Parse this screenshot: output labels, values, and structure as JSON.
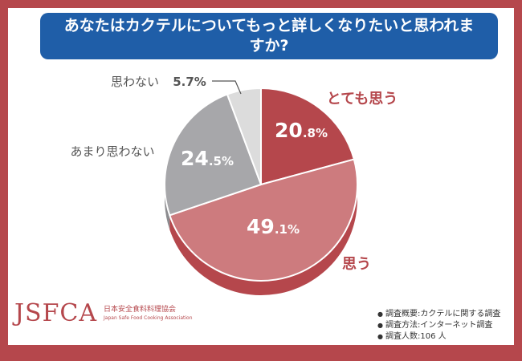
{
  "title": "あなたはカクテルについてもっと詳しくなりたいと思われますか?",
  "chart_data": {
    "type": "pie",
    "slices": [
      {
        "label": "とても思う",
        "value": 20.8,
        "value_main": "20",
        "value_dec": ".8%"
      },
      {
        "label": "思う",
        "value": 49.1,
        "value_main": "49",
        "value_dec": ".1%"
      },
      {
        "label": "あまり思わない",
        "value": 24.5,
        "value_main": "24",
        "value_dec": ".5%"
      },
      {
        "label": "思わない",
        "value": 5.7,
        "value_main": "5.7%",
        "value_dec": ""
      }
    ],
    "colors": [
      "#b5474c",
      "#cd7b7e",
      "#a7a7aa",
      "#dcdcdc"
    ],
    "side_colors": [
      "#9e3a3f",
      "#b5474c",
      "#8c8c8f",
      "#c2c2c2"
    ]
  },
  "logo": {
    "main": "JSFCA",
    "jp": "日本安全食料料理協会",
    "en": "Japan Safe Food Cooking Association"
  },
  "notes": [
    "調査概要:カクテルに関する調査",
    "調査方法:インターネット調査",
    "調査人数:106 人"
  ]
}
